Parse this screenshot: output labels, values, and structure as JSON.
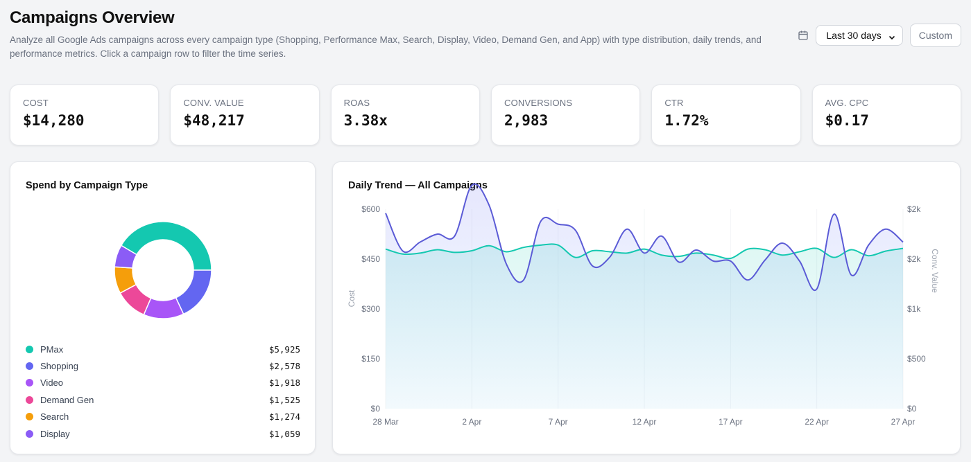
{
  "header": {
    "title": "Campaigns Overview",
    "description": "Analyze all Google Ads campaigns across every campaign type (Shopping, Performance Max, Search, Display, Video, Demand Gen, and App) with type distribution, daily trends, and performance metrics. Click a campaign row to filter the time series."
  },
  "controls": {
    "range_label": "Last 30 days",
    "custom_label": "Custom",
    "calendar_icon": "calendar-icon"
  },
  "kpis": [
    {
      "label": "COST",
      "value": "$14,280"
    },
    {
      "label": "CONV. VALUE",
      "value": "$48,217"
    },
    {
      "label": "ROAS",
      "value": "3.38x"
    },
    {
      "label": "CONVERSIONS",
      "value": "2,983"
    },
    {
      "label": "CTR",
      "value": "1.72%"
    },
    {
      "label": "AVG. CPC",
      "value": "$0.17"
    }
  ],
  "spend": {
    "title": "Spend by Campaign Type",
    "items": [
      {
        "name": "PMax",
        "value": "$5,925",
        "color": "#14c8b0"
      },
      {
        "name": "Shopping",
        "value": "$2,578",
        "color": "#6366f1"
      },
      {
        "name": "Video",
        "value": "$1,918",
        "color": "#a855f7"
      },
      {
        "name": "Demand Gen",
        "value": "$1,525",
        "color": "#ec4899"
      },
      {
        "name": "Search",
        "value": "$1,274",
        "color": "#f59e0b"
      },
      {
        "name": "Display",
        "value": "$1,059",
        "color": "#8b5cf6"
      }
    ]
  },
  "trend": {
    "title": "Daily Trend — All Campaigns",
    "y_left_label": "Cost",
    "y_right_label": "Conv. Value",
    "y_left_ticks": [
      "$0",
      "$150",
      "$300",
      "$450",
      "$600"
    ],
    "y_right_ticks": [
      "$0",
      "$500",
      "$1k",
      "$2k",
      "$2k"
    ],
    "x_ticks": [
      "28 Mar",
      "2 Apr",
      "7 Apr",
      "12 Apr",
      "17 Apr",
      "22 Apr",
      "27 Apr"
    ]
  },
  "chart_data": [
    {
      "type": "pie",
      "title": "Spend by Campaign Type",
      "categories": [
        "PMax",
        "Shopping",
        "Video",
        "Demand Gen",
        "Search",
        "Display"
      ],
      "values": [
        5925,
        2578,
        1918,
        1525,
        1274,
        1059
      ],
      "legend": "bottom"
    },
    {
      "type": "line",
      "title": "Daily Trend — All Campaigns",
      "xlabel": "",
      "ylabel": "Cost",
      "y2label": "Conv. Value",
      "ylim": [
        0,
        600
      ],
      "y2lim": [
        0,
        2000
      ],
      "x": [
        "28 Mar",
        "29 Mar",
        "30 Mar",
        "31 Mar",
        "1 Apr",
        "2 Apr",
        "3 Apr",
        "4 Apr",
        "5 Apr",
        "6 Apr",
        "7 Apr",
        "8 Apr",
        "9 Apr",
        "10 Apr",
        "11 Apr",
        "12 Apr",
        "13 Apr",
        "14 Apr",
        "15 Apr",
        "16 Apr",
        "17 Apr",
        "18 Apr",
        "19 Apr",
        "20 Apr",
        "21 Apr",
        "22 Apr",
        "23 Apr",
        "24 Apr",
        "25 Apr",
        "26 Apr",
        "27 Apr"
      ],
      "series": [
        {
          "name": "Cost",
          "axis": "left",
          "color": "#14c8b0",
          "values": [
            480,
            465,
            468,
            478,
            470,
            475,
            490,
            472,
            485,
            492,
            492,
            455,
            475,
            472,
            468,
            480,
            462,
            458,
            468,
            462,
            452,
            480,
            478,
            462,
            472,
            482,
            455,
            478,
            460,
            474,
            482
          ]
        },
        {
          "name": "Conv. Value",
          "axis": "right",
          "color": "#5b5bd6",
          "values": [
            1960,
            1580,
            1670,
            1750,
            1730,
            2240,
            2040,
            1450,
            1290,
            1880,
            1850,
            1790,
            1430,
            1520,
            1800,
            1560,
            1730,
            1470,
            1590,
            1480,
            1480,
            1290,
            1490,
            1660,
            1480,
            1200,
            1950,
            1340,
            1640,
            1800,
            1670
          ]
        }
      ],
      "grid": false
    }
  ]
}
